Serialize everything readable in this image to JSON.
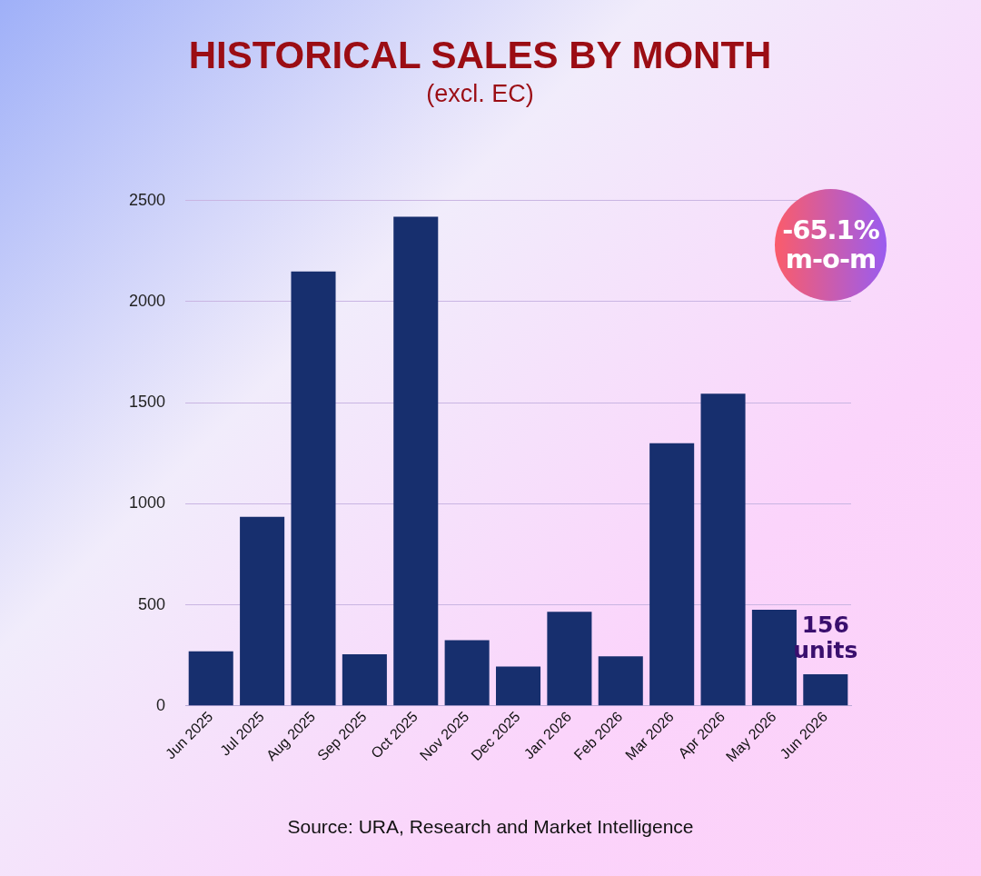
{
  "chart_data": {
    "type": "bar",
    "title": "HISTORICAL SALES BY MONTH",
    "subtitle": "(excl. EC)",
    "categories": [
      "Jun 2025",
      "Jul 2025",
      "Aug 2025",
      "Sep 2025",
      "Oct 2025",
      "Nov 2025",
      "Dec 2025",
      "Jan 2026",
      "Feb 2026",
      "Mar 2026",
      "Apr 2026",
      "May 2026",
      "Jun 2026"
    ],
    "values": [
      270,
      935,
      2150,
      255,
      2420,
      325,
      195,
      465,
      245,
      1300,
      1545,
      475,
      156
    ],
    "color": "#172f6e",
    "ylim": [
      0,
      2500
    ],
    "yticks": [
      0,
      500,
      1000,
      1500,
      2000,
      2500
    ],
    "grid": "y",
    "legend": false,
    "annotations": [
      "-65.1% m-o-m",
      {
        "text": "156 units",
        "x": "Jun 2026",
        "y": 156
      },
      "Source: URA, Research and Market Intelligence"
    ]
  }
}
